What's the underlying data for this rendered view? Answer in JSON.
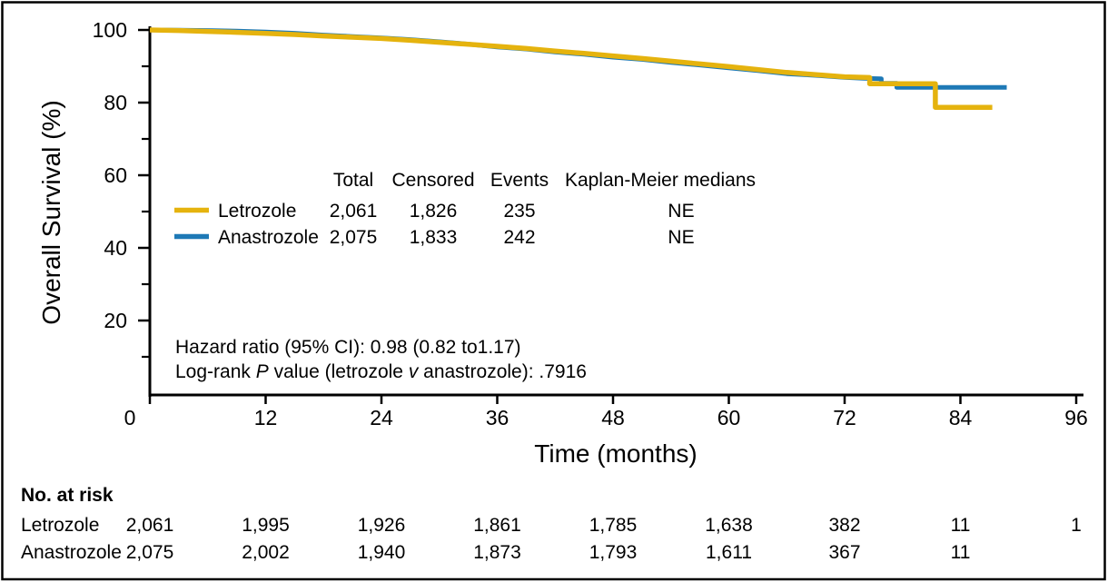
{
  "colors": {
    "letrozole": "#E5B30E",
    "anastrozole": "#1E79B6",
    "axis": "#000000",
    "background": "#ffffff"
  },
  "chart_data": {
    "type": "line",
    "subtype": "kaplan-meier-survival",
    "title": "",
    "xlabel": "Time (months)",
    "ylabel": "Overall Survival (%)",
    "xlim": [
      0,
      96
    ],
    "ylim": [
      0,
      100
    ],
    "xticks": [
      0,
      12,
      24,
      36,
      48,
      60,
      72,
      84,
      96
    ],
    "yticks_major": [
      100,
      80,
      60,
      40,
      20
    ],
    "yticks_minor": [
      90,
      70,
      50,
      30,
      10
    ],
    "grid": false,
    "series": [
      {
        "name": "Letrozole",
        "color": "#E5B30E",
        "points": [
          [
            0,
            100
          ],
          [
            3,
            99.85
          ],
          [
            6,
            99.6
          ],
          [
            9,
            99.35
          ],
          [
            12,
            99.05
          ],
          [
            15,
            98.75
          ],
          [
            18,
            98.35
          ],
          [
            21,
            98.0
          ],
          [
            24,
            97.65
          ],
          [
            27,
            97.15
          ],
          [
            30,
            96.6
          ],
          [
            33,
            96.05
          ],
          [
            36,
            95.5
          ],
          [
            39,
            94.9
          ],
          [
            42,
            94.2
          ],
          [
            45,
            93.55
          ],
          [
            48,
            92.85
          ],
          [
            51,
            92.15
          ],
          [
            54,
            91.4
          ],
          [
            57,
            90.65
          ],
          [
            60,
            89.9
          ],
          [
            63,
            89.1
          ],
          [
            66,
            88.3
          ],
          [
            68,
            87.9
          ],
          [
            70,
            87.5
          ],
          [
            72,
            87.1
          ],
          [
            74.6,
            86.9
          ],
          [
            74.6,
            85.2
          ],
          [
            81.4,
            85.2
          ],
          [
            81.4,
            78.7
          ],
          [
            87.3,
            78.7
          ]
        ]
      },
      {
        "name": "Anastrozole",
        "color": "#1E79B6",
        "points": [
          [
            0,
            100
          ],
          [
            3,
            99.95
          ],
          [
            6,
            99.85
          ],
          [
            9,
            99.7
          ],
          [
            12,
            99.45
          ],
          [
            15,
            99.1
          ],
          [
            18,
            98.6
          ],
          [
            21,
            98.2
          ],
          [
            24,
            97.8
          ],
          [
            27,
            97.35
          ],
          [
            30,
            96.75
          ],
          [
            33,
            96.1
          ],
          [
            36,
            95.3
          ],
          [
            39,
            94.75
          ],
          [
            42,
            93.95
          ],
          [
            45,
            93.3
          ],
          [
            48,
            92.5
          ],
          [
            51,
            91.9
          ],
          [
            54,
            91.05
          ],
          [
            57,
            90.35
          ],
          [
            60,
            89.55
          ],
          [
            63,
            88.8
          ],
          [
            66,
            87.95
          ],
          [
            69,
            87.5
          ],
          [
            72,
            86.95
          ],
          [
            74,
            86.7
          ],
          [
            75.8,
            86.55
          ],
          [
            75.8,
            85.3
          ],
          [
            77.4,
            85.3
          ],
          [
            77.4,
            84.2
          ],
          [
            88.8,
            84.2
          ]
        ]
      }
    ],
    "legend_table": {
      "headers": [
        "Total",
        "Censored",
        "Events",
        "Kaplan-Meier medians"
      ],
      "rows": [
        {
          "name": "Letrozole",
          "total": "2,061",
          "censored": "1,826",
          "events": "235",
          "median": "NE"
        },
        {
          "name": "Anastrozole",
          "total": "2,075",
          "censored": "1,833",
          "events": "242",
          "median": "NE"
        }
      ]
    },
    "annotations": {
      "hazard_text": "Hazard ratio (95% CI): 0.98 (0.82 to1.17)",
      "logrank_segments": [
        [
          "Log-rank ",
          false
        ],
        [
          "P",
          true
        ],
        [
          " value (letrozole ",
          false
        ],
        [
          "v",
          true
        ],
        [
          " anastrozole): .7916",
          false
        ]
      ]
    },
    "at_risk": {
      "title": "No. at risk",
      "months": [
        0,
        12,
        24,
        36,
        48,
        60,
        72,
        84,
        96
      ],
      "rows": [
        {
          "name": "Letrozole",
          "values": [
            "2,061",
            "1,995",
            "1,926",
            "1,861",
            "1,785",
            "1,638",
            "382",
            "11",
            "1"
          ]
        },
        {
          "name": "Anastrozole",
          "values": [
            "2,075",
            "2,002",
            "1,940",
            "1,873",
            "1,793",
            "1,611",
            "367",
            "11",
            ""
          ]
        }
      ]
    }
  }
}
